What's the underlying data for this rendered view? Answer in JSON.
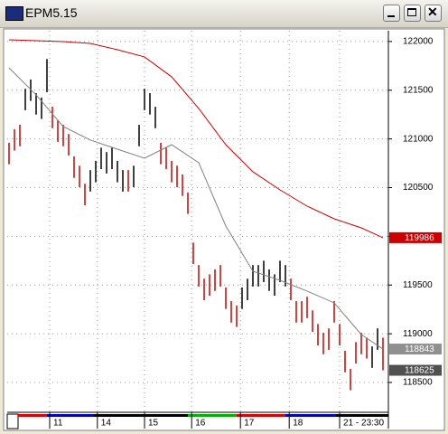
{
  "window": {
    "title": "EPM5.15"
  },
  "chart_data": {
    "type": "ohlc",
    "high": [
      120960,
      121100,
      121145,
      121515,
      121610,
      121470,
      121425,
      121820,
      121330,
      121190,
      121145,
      121050,
      120820,
      120725,
      120540,
      120680,
      120775,
      120910,
      120865,
      120910,
      120775,
      120680,
      120680,
      120725,
      121145,
      121515,
      121470,
      121330,
      120960,
      120910,
      120775,
      120725,
      120635,
      120450,
      119935,
      119705,
      119565,
      119610,
      119660,
      119705,
      119475,
      119335,
      119290,
      119475,
      119565,
      119705,
      119705,
      119750,
      119660,
      119610,
      119750,
      119705,
      119565,
      119335,
      119335,
      119380,
      119240,
      119100,
      119010,
      119055,
      119335,
      119100,
      118825,
      118640,
      118915,
      119010,
      118960,
      118870,
      119055,
      118960
    ],
    "low": [
      120740,
      120880,
      120925,
      121295,
      121390,
      121250,
      121205,
      121480,
      121110,
      120970,
      120925,
      120830,
      120600,
      120505,
      120320,
      120460,
      120555,
      120690,
      120645,
      120690,
      120555,
      120460,
      120460,
      120505,
      120925,
      121295,
      121250,
      121110,
      120740,
      120690,
      120555,
      120505,
      120415,
      120230,
      119715,
      119485,
      119345,
      119390,
      119440,
      119485,
      119255,
      119115,
      119070,
      119255,
      119345,
      119485,
      119485,
      119530,
      119440,
      119390,
      119530,
      119485,
      119345,
      119115,
      119115,
      119160,
      119020,
      118880,
      118790,
      118835,
      119115,
      118880,
      118605,
      118420,
      118695,
      118790,
      118745,
      118650,
      118835,
      118625
    ],
    "bar_colors": [
      "#cc0000",
      "#cc0000",
      "#cc0000",
      "#000000",
      "#000000",
      "#000000",
      "#000000",
      "#000000",
      "#cc0000",
      "#cc0000",
      "#cc0000",
      "#cc0000",
      "#cc0000",
      "#cc0000",
      "#cc0000",
      "#000000",
      "#000000",
      "#000000",
      "#000000",
      "#000000",
      "#000000",
      "#000000",
      "#cc0000",
      "#000000",
      "#000000",
      "#000000",
      "#000000",
      "#000000",
      "#cc0000",
      "#cc0000",
      "#cc0000",
      "#cc0000",
      "#cc0000",
      "#cc0000",
      "#cc0000",
      "#cc0000",
      "#cc0000",
      "#cc0000",
      "#cc0000",
      "#cc0000",
      "#cc0000",
      "#cc0000",
      "#cc0000",
      "#000000",
      "#000000",
      "#000000",
      "#000000",
      "#000000",
      "#000000",
      "#000000",
      "#000000",
      "#000000",
      "#cc0000",
      "#cc0000",
      "#cc0000",
      "#cc0000",
      "#cc0000",
      "#cc0000",
      "#cc0000",
      "#cc0000",
      "#cc0000",
      "#cc0000",
      "#cc0000",
      "#cc0000",
      "#cc0000",
      "#cc0000",
      "#cc0000",
      "#000000",
      "#000000",
      "#cc0000"
    ],
    "lines": [
      {
        "color": "#cc0000",
        "x": [
          0,
          5,
          10,
          15,
          20,
          25,
          30,
          35,
          40,
          45,
          50,
          55,
          60,
          65,
          69
        ],
        "values": [
          122018,
          122009,
          121999,
          121981,
          121916,
          121842,
          121638,
          121313,
          120941,
          120663,
          120477,
          120310,
          120180,
          120087,
          119986
        ]
      },
      {
        "color": "#808080",
        "x": [
          0,
          5,
          10,
          15,
          20,
          25,
          30,
          35,
          40,
          45,
          50,
          55,
          60,
          65,
          69
        ],
        "values": [
          121730,
          121452,
          121127,
          120988,
          120895,
          120802,
          120941,
          120756,
          120106,
          119642,
          119549,
          119438,
          119317,
          118992,
          118843
        ]
      }
    ],
    "xlim": [
      -0.5,
      69.5
    ],
    "xticks": [
      {
        "value": 7.5,
        "label": "11"
      },
      {
        "value": 16.3,
        "label": "14"
      },
      {
        "value": 25,
        "label": "15"
      },
      {
        "value": 33.7,
        "label": "16"
      },
      {
        "value": 42.7,
        "label": "17"
      },
      {
        "value": 51.7,
        "label": "18"
      },
      {
        "value": 61,
        "label": "21 - 23:30"
      }
    ],
    "ylim": [
      118203,
      122092
    ],
    "yticks": [
      118500,
      119000,
      119500,
      120000,
      120500,
      121000,
      121500,
      122000
    ],
    "grid": true,
    "price_flags": [
      {
        "value": 119986,
        "color": "#cc0000"
      },
      {
        "value": 118843,
        "color": "#909090"
      },
      {
        "value": 118625,
        "color": "#505050"
      }
    ]
  }
}
